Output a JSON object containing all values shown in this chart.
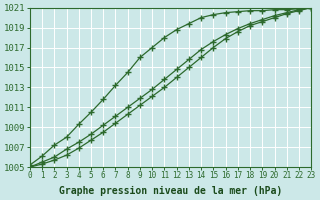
{
  "bg_color": "#cce8e8",
  "grid_color": "#ffffff",
  "line_color": "#2d6a2d",
  "marker_color": "#2d6a2d",
  "xlabel": "Graphe pression niveau de la mer (hPa)",
  "xlabel_color": "#1a4a1a",
  "ylabel_color": "#1a4a1a",
  "xmin": 0,
  "xmax": 23,
  "ymin": 1005,
  "ymax": 1021,
  "ytick_step": 2,
  "series": [
    [
      1005.2,
      1006.1,
      1007.2,
      1008.0,
      1009.3,
      1010.5,
      1011.8,
      1013.2,
      1014.5,
      1016.0,
      1017.0,
      1018.0,
      1018.8,
      1019.4,
      1020.0,
      1020.3,
      1020.5,
      1020.6,
      1020.7,
      1020.7,
      1020.8,
      1020.8,
      1020.9,
      1021.0
    ],
    [
      1005.0,
      1005.5,
      1006.0,
      1006.8,
      1007.5,
      1008.3,
      1009.2,
      1010.1,
      1011.0,
      1011.9,
      1012.8,
      1013.8,
      1014.8,
      1015.8,
      1016.8,
      1017.6,
      1018.3,
      1018.9,
      1019.4,
      1019.8,
      1020.2,
      1020.5,
      1020.8,
      1021.0
    ],
    [
      1005.0,
      1005.3,
      1005.7,
      1006.2,
      1006.9,
      1007.7,
      1008.5,
      1009.4,
      1010.3,
      1011.2,
      1012.1,
      1013.0,
      1014.0,
      1015.0,
      1016.0,
      1017.0,
      1017.9,
      1018.6,
      1019.2,
      1019.6,
      1020.0,
      1020.4,
      1020.7,
      1021.0
    ]
  ],
  "hours": [
    0,
    1,
    2,
    3,
    4,
    5,
    6,
    7,
    8,
    9,
    10,
    11,
    12,
    13,
    14,
    15,
    16,
    17,
    18,
    19,
    20,
    21,
    22,
    23
  ],
  "marker": "+",
  "markersize": 4,
  "markeredgewidth": 1.0,
  "linewidth": 0.9,
  "fontsize_label": 7,
  "fontsize_tick": 6.5,
  "fontsize_xtick": 5.5
}
